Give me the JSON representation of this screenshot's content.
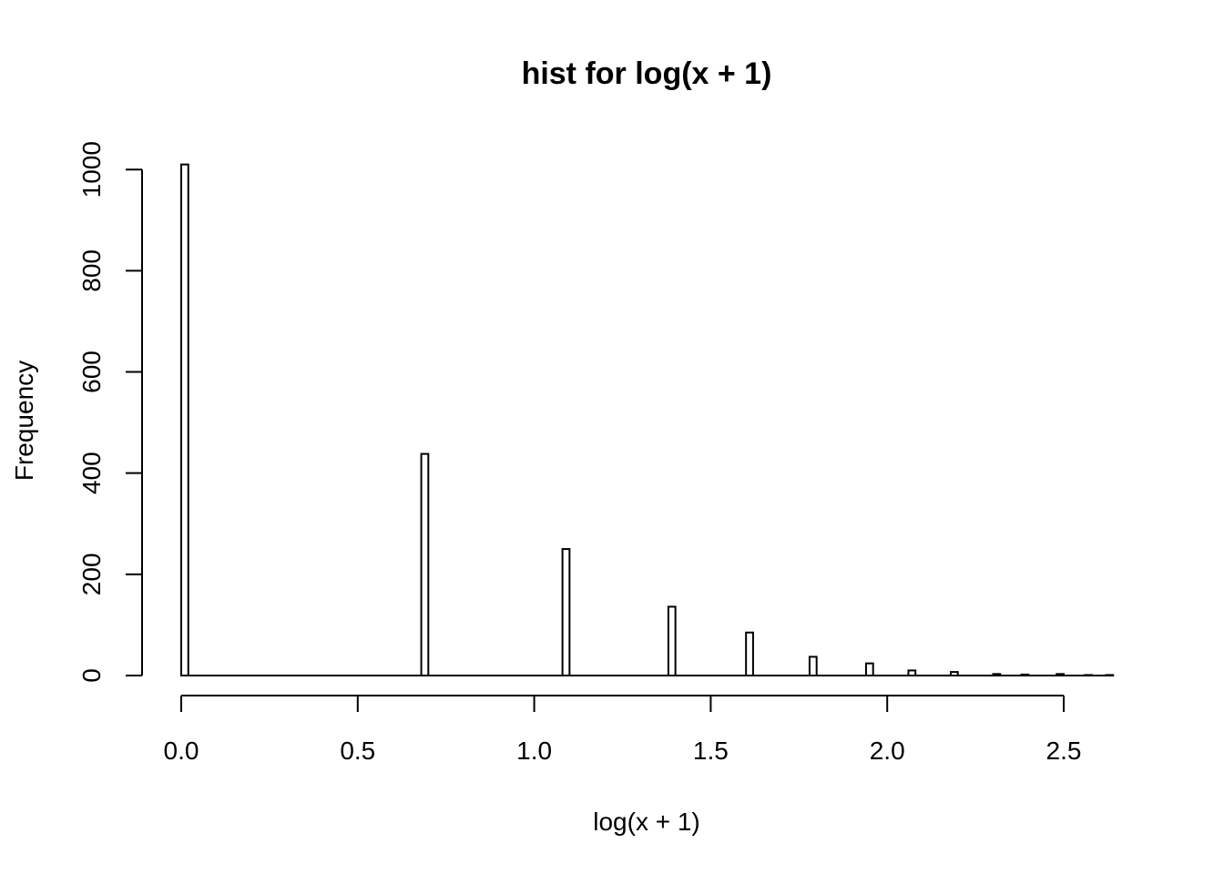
{
  "chart_data": {
    "type": "bar",
    "title": "hist for log(x + 1)",
    "xlabel": "log(x + 1)",
    "ylabel": "Frequency",
    "xlim": [
      0,
      2.64
    ],
    "ylim": [
      0,
      1010
    ],
    "x_ticks": [
      0,
      0.5,
      1,
      1.5,
      2,
      2.5
    ],
    "x_tick_labels": [
      "0.0",
      "0.5",
      "1.0",
      "1.5",
      "2.0",
      "2.5"
    ],
    "y_ticks": [
      0,
      200,
      400,
      600,
      800,
      1000
    ],
    "y_tick_labels": [
      "0",
      "200",
      "400",
      "600",
      "800",
      "1000"
    ],
    "bin_width": 0.02,
    "bins": [
      {
        "start": 0.0,
        "count": 1010
      },
      {
        "start": 0.68,
        "count": 438
      },
      {
        "start": 1.08,
        "count": 250
      },
      {
        "start": 1.38,
        "count": 136
      },
      {
        "start": 1.6,
        "count": 85
      },
      {
        "start": 1.78,
        "count": 37
      },
      {
        "start": 1.94,
        "count": 24
      },
      {
        "start": 2.06,
        "count": 10
      },
      {
        "start": 2.18,
        "count": 7
      },
      {
        "start": 2.3,
        "count": 3
      },
      {
        "start": 2.38,
        "count": 2
      },
      {
        "start": 2.48,
        "count": 3
      },
      {
        "start": 2.56,
        "count": 1
      },
      {
        "start": 2.62,
        "count": 1
      }
    ],
    "grid": false,
    "legend": "none"
  }
}
